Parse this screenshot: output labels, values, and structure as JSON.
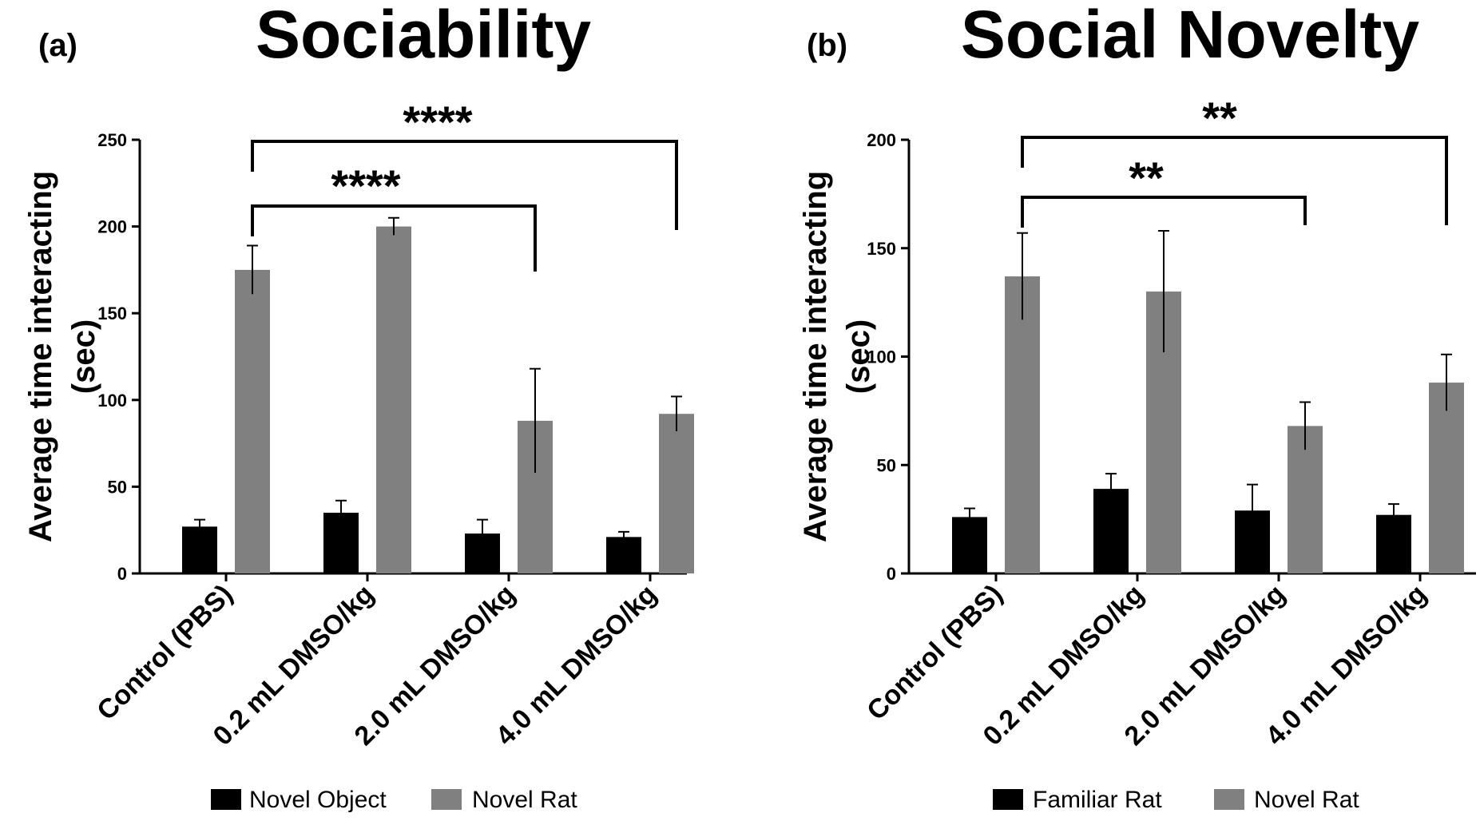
{
  "chart_data": [
    {
      "type": "bar",
      "panel_label": "(a)",
      "title": "Sociability",
      "ylabel": "Average time interacting (sec)",
      "ylabel_lines": [
        "Average time interacting",
        "(sec)"
      ],
      "ylim": [
        0,
        250
      ],
      "yticks": [
        0,
        50,
        100,
        150,
        200,
        250
      ],
      "categories": [
        "Control (PBS)",
        "0.2 mL DMSO/kg",
        "2.0 mL DMSO/kg",
        "4.0 mL DMSO/kg"
      ],
      "series": [
        {
          "name": "Novel Object",
          "color": "#000000",
          "values": [
            27,
            35,
            23,
            21
          ],
          "errors": [
            4,
            7,
            8,
            3
          ]
        },
        {
          "name": "Novel Rat",
          "color": "#808080",
          "values": [
            175,
            200,
            88,
            92
          ],
          "errors": [
            14,
            5,
            30,
            10
          ]
        }
      ],
      "significance": [
        {
          "label": "****",
          "from_category": 0,
          "to_category": 2
        },
        {
          "label": "****",
          "from_category": 0,
          "to_category": 3
        }
      ],
      "legend_position": "bottom"
    },
    {
      "type": "bar",
      "panel_label": "(b)",
      "title": "Social Novelty",
      "ylabel": "Average time interacting (sec)",
      "ylabel_lines": [
        "Average time interacting",
        "(sec)"
      ],
      "ylim": [
        0,
        200
      ],
      "yticks": [
        0,
        50,
        100,
        150,
        200
      ],
      "categories": [
        "Control (PBS)",
        "0.2 mL DMSO/kg",
        "2.0 mL DMSO/kg",
        "4.0 mL DMSO/kg"
      ],
      "series": [
        {
          "name": "Familiar Rat",
          "color": "#000000",
          "values": [
            26,
            39,
            29,
            27
          ],
          "errors": [
            4,
            7,
            12,
            5
          ]
        },
        {
          "name": "Novel Rat",
          "color": "#808080",
          "values": [
            137,
            130,
            68,
            88
          ],
          "errors": [
            20,
            28,
            11,
            13
          ]
        }
      ],
      "significance": [
        {
          "label": "**",
          "from_category": 0,
          "to_category": 2
        },
        {
          "label": "**",
          "from_category": 0,
          "to_category": 3
        }
      ],
      "legend_position": "bottom"
    }
  ]
}
